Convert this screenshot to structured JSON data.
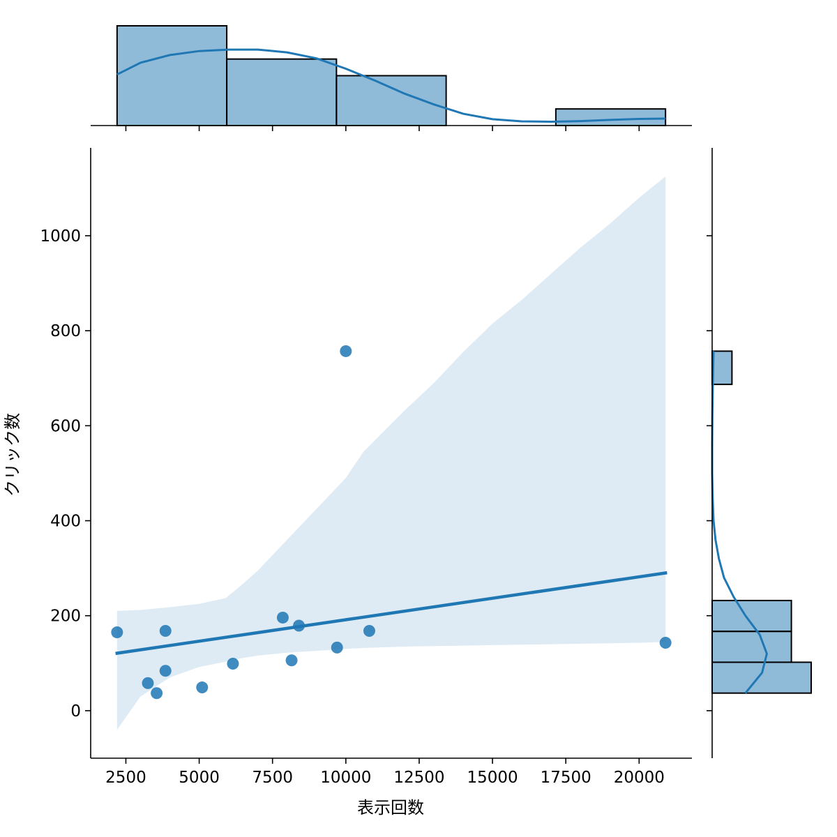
{
  "chart_data": {
    "type": "scatter",
    "kind": "jointplot",
    "xlabel": "表示回数",
    "ylabel": "クリック数",
    "xlim": [
      1300,
      21800
    ],
    "ylim": [
      -100,
      1185
    ],
    "x_ticks": [
      2500,
      5000,
      7500,
      10000,
      12500,
      15000,
      17500,
      20000
    ],
    "y_ticks": [
      0,
      200,
      400,
      600,
      800,
      1000
    ],
    "x_tick_labels": [
      "2500",
      "5000",
      "7500",
      "10000",
      "12500",
      "15000",
      "17500",
      "20000"
    ],
    "y_tick_labels": [
      "0",
      "200",
      "400",
      "600",
      "800",
      "1000"
    ],
    "grid": false,
    "color": "#1f77b4",
    "points": [
      {
        "x": 2200,
        "y": 165
      },
      {
        "x": 3250,
        "y": 58
      },
      {
        "x": 3550,
        "y": 37
      },
      {
        "x": 3850,
        "y": 168
      },
      {
        "x": 3850,
        "y": 84
      },
      {
        "x": 5100,
        "y": 49
      },
      {
        "x": 6150,
        "y": 99
      },
      {
        "x": 7850,
        "y": 196
      },
      {
        "x": 8150,
        "y": 106
      },
      {
        "x": 8400,
        "y": 179
      },
      {
        "x": 9700,
        "y": 133
      },
      {
        "x": 10000,
        "y": 757
      },
      {
        "x": 10800,
        "y": 168
      },
      {
        "x": 20900,
        "y": 143
      }
    ],
    "regression_line": {
      "x": [
        2200,
        20900
      ],
      "y": [
        121,
        290
      ]
    },
    "confidence_band": [
      {
        "x": 2200,
        "lower": -40,
        "upper": 210
      },
      {
        "x": 3000,
        "lower": 30,
        "upper": 212
      },
      {
        "x": 4000,
        "lower": 70,
        "upper": 218
      },
      {
        "x": 5000,
        "lower": 92,
        "upper": 225
      },
      {
        "x": 5900,
        "lower": 103,
        "upper": 237
      },
      {
        "x": 6400,
        "lower": 110,
        "upper": 262
      },
      {
        "x": 7000,
        "lower": 116,
        "upper": 295
      },
      {
        "x": 8000,
        "lower": 122,
        "upper": 360
      },
      {
        "x": 9000,
        "lower": 126,
        "upper": 425
      },
      {
        "x": 10000,
        "lower": 130,
        "upper": 490
      },
      {
        "x": 10600,
        "lower": 132,
        "upper": 545
      },
      {
        "x": 12000,
        "lower": 135,
        "upper": 632
      },
      {
        "x": 13000,
        "lower": 136,
        "upper": 690
      },
      {
        "x": 14000,
        "lower": 137,
        "upper": 755
      },
      {
        "x": 15000,
        "lower": 138,
        "upper": 815
      },
      {
        "x": 16000,
        "lower": 139,
        "upper": 865
      },
      {
        "x": 17000,
        "lower": 140,
        "upper": 920
      },
      {
        "x": 18000,
        "lower": 141,
        "upper": 975
      },
      {
        "x": 19000,
        "lower": 142,
        "upper": 1025
      },
      {
        "x": 20000,
        "lower": 143,
        "upper": 1080
      },
      {
        "x": 20900,
        "lower": 145,
        "upper": 1125
      }
    ],
    "top_histogram": {
      "bin_edges": [
        2200,
        5940,
        9680,
        13420,
        17160,
        20900
      ],
      "counts": [
        6,
        4,
        3,
        0,
        1
      ],
      "kde": [
        {
          "x": 2200,
          "y": 3.07
        },
        {
          "x": 3000,
          "y": 3.78
        },
        {
          "x": 4000,
          "y": 4.24
        },
        {
          "x": 5000,
          "y": 4.48
        },
        {
          "x": 6000,
          "y": 4.57
        },
        {
          "x": 7000,
          "y": 4.57
        },
        {
          "x": 8000,
          "y": 4.4
        },
        {
          "x": 9000,
          "y": 4.04
        },
        {
          "x": 10000,
          "y": 3.42
        },
        {
          "x": 11000,
          "y": 2.7
        },
        {
          "x": 12000,
          "y": 1.92
        },
        {
          "x": 13000,
          "y": 1.27
        },
        {
          "x": 14000,
          "y": 0.71
        },
        {
          "x": 15000,
          "y": 0.38
        },
        {
          "x": 16000,
          "y": 0.25
        },
        {
          "x": 17000,
          "y": 0.23
        },
        {
          "x": 18000,
          "y": 0.27
        },
        {
          "x": 19000,
          "y": 0.34
        },
        {
          "x": 20000,
          "y": 0.4
        },
        {
          "x": 20900,
          "y": 0.42
        }
      ]
    },
    "right_histogram": {
      "bin_edges": [
        37,
        102,
        167,
        232,
        297,
        362,
        427,
        492,
        557,
        622,
        687,
        757
      ],
      "counts": [
        5,
        4,
        4,
        0,
        0,
        0,
        0,
        0,
        0,
        0,
        1
      ],
      "kde": [
        {
          "y": 37,
          "x": 1.68
        },
        {
          "y": 80,
          "x": 2.52
        },
        {
          "y": 120,
          "x": 2.76
        },
        {
          "y": 160,
          "x": 2.4
        },
        {
          "y": 200,
          "x": 1.68
        },
        {
          "y": 240,
          "x": 1.08
        },
        {
          "y": 280,
          "x": 0.6
        },
        {
          "y": 320,
          "x": 0.34
        },
        {
          "y": 360,
          "x": 0.17
        },
        {
          "y": 400,
          "x": 0.07
        },
        {
          "y": 450,
          "x": 0.024
        },
        {
          "y": 500,
          "x": 0.0
        },
        {
          "y": 560,
          "x": 0.0
        },
        {
          "y": 620,
          "x": 0.01
        },
        {
          "y": 680,
          "x": 0.03
        },
        {
          "y": 720,
          "x": 0.05
        },
        {
          "y": 757,
          "x": 0.07
        }
      ]
    }
  }
}
